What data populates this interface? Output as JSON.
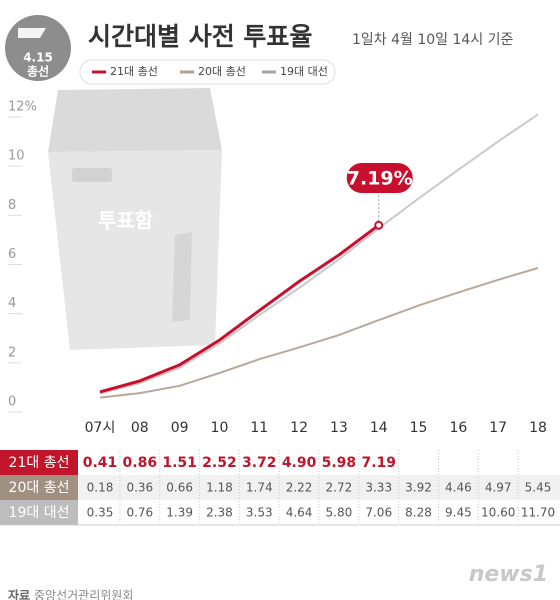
{
  "header": {
    "badge_top": "4.15",
    "badge_bottom": "총선",
    "title": "시간대별 사전 투표율",
    "subtitle": "1일차 4월 10일  14시 기준",
    "box_label": "투표함"
  },
  "chart_data": {
    "type": "line",
    "categories": [
      "07시",
      "08",
      "09",
      "10",
      "11",
      "12",
      "13",
      "14",
      "15",
      "16",
      "17",
      "18"
    ],
    "series": [
      {
        "name": "21대 총선",
        "color": "#c8102e",
        "values": [
          0.41,
          0.86,
          1.51,
          2.52,
          3.72,
          4.9,
          5.98,
          7.19,
          null,
          null,
          null,
          null
        ],
        "value_labels": [
          "0.41",
          "0.86",
          "1.51",
          "2.52",
          "3.72",
          "4.90",
          "5.98",
          "7.19",
          null,
          null,
          null,
          null
        ]
      },
      {
        "name": "20대 총선",
        "color": "#b9a99a",
        "values": [
          0.18,
          0.36,
          0.66,
          1.18,
          1.74,
          2.22,
          2.72,
          3.33,
          3.92,
          4.46,
          4.97,
          5.45
        ],
        "value_labels": [
          "0.18",
          "0.36",
          "0.66",
          "1.18",
          "1.74",
          "2.22",
          "2.72",
          "3.33",
          "3.92",
          "4.46",
          "4.97",
          "5.45"
        ]
      },
      {
        "name": "19대 대선",
        "color": "#c9c9c9",
        "values": [
          0.35,
          0.76,
          1.39,
          2.38,
          3.53,
          4.64,
          5.8,
          7.06,
          8.28,
          9.45,
          10.6,
          11.7
        ],
        "value_labels": [
          "0.35",
          "0.76",
          "1.39",
          "2.38",
          "3.53",
          "4.64",
          "5.80",
          "7.06",
          "8.28",
          "9.45",
          "10.60",
          "11.70"
        ]
      }
    ],
    "ylim": [
      0,
      12
    ],
    "yticks": [
      0,
      2,
      4,
      6,
      8,
      10,
      {
        "value": 12,
        "label": "12%"
      }
    ],
    "annotation": {
      "value": 7.19,
      "label": "7.19%"
    }
  },
  "footer": {
    "source_label": "자료",
    "source": "중앙선거관리위원회",
    "logo": "news1"
  }
}
